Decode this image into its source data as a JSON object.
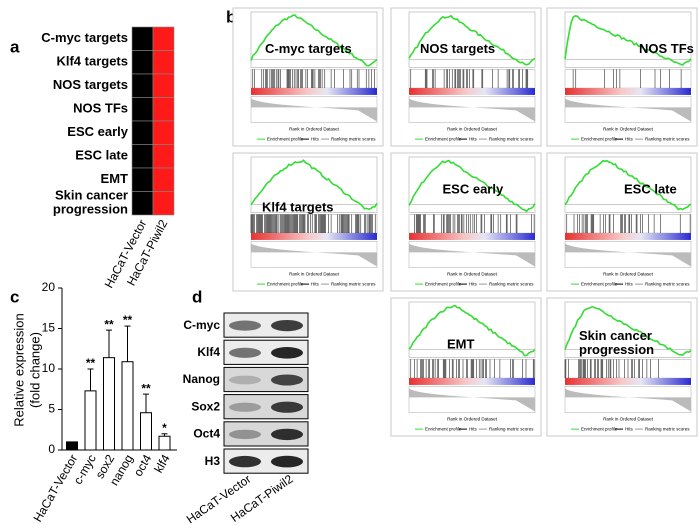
{
  "panel_labels": [
    "a",
    "b",
    "c",
    "d"
  ],
  "heatmap": {
    "rows": [
      [
        "C-myc targets"
      ],
      [
        "Klf4 targets"
      ],
      [
        "NOS targets"
      ],
      [
        "NOS TFs"
      ],
      [
        "ESC early"
      ],
      [
        "ESC late"
      ],
      [
        "EMT"
      ],
      [
        "Skin cancer",
        "progression"
      ]
    ],
    "columns": [
      "HaCaT-Vector",
      "HaCaT-Piwil2"
    ],
    "colors": [
      "#000000",
      "#ff1a1a"
    ]
  },
  "gsea": {
    "titles": [
      [
        "C-myc targets"
      ],
      [
        "NOS targets"
      ],
      [
        "NOS TFs"
      ],
      [
        "Klf4 targets"
      ],
      [
        "ESC early"
      ],
      [
        "ESC late"
      ],
      [
        "EMT"
      ],
      [
        "Skin cancer",
        "progression"
      ]
    ],
    "xlabel": "Rank in Ordered Dataset",
    "legend": [
      "Enrichment profile",
      "Hits",
      "Ranking metric scores"
    ],
    "curve_color": "#33dd33"
  },
  "chart_data": {
    "type": "bar",
    "ylabel": [
      "Relative expression",
      "(fold change)"
    ],
    "categories": [
      "HaCaT-Vector",
      "c-myc",
      "sox2",
      "nanog",
      "oct4",
      "klf4"
    ],
    "values": [
      1,
      7.3,
      11.4,
      10.9,
      4.6,
      1.7
    ],
    "errors": [
      0,
      2.7,
      3.4,
      4.4,
      2.3,
      0.3
    ],
    "annotations": [
      null,
      "**",
      "**",
      "**",
      "**",
      "*"
    ],
    "colors": [
      "#000000",
      "#ffffff",
      "#ffffff",
      "#ffffff",
      "#ffffff",
      "#ffffff"
    ],
    "ylim": [
      0,
      20
    ],
    "yticks": [
      0,
      5,
      10,
      15,
      20
    ]
  },
  "blot": {
    "proteins": [
      "C-myc",
      "Klf4",
      "Nanog",
      "Sox2",
      "Oct4",
      "H3"
    ],
    "columns": [
      "HaCaT-Vector",
      "HaCaT-Piwil2"
    ]
  }
}
